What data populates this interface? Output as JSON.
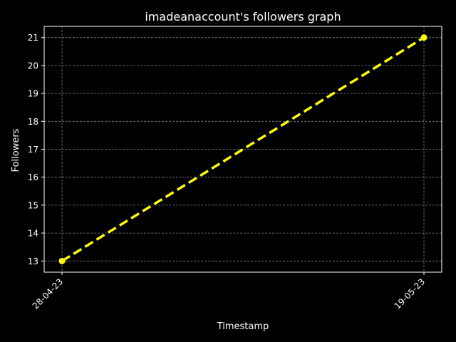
{
  "chart_data": {
    "type": "line",
    "title": "imadeanaccount's followers graph",
    "xlabel": "Timestamp",
    "ylabel": "Followers",
    "x": [
      "28-04-23",
      "19-05-23"
    ],
    "series": [
      {
        "values": [
          13,
          21
        ],
        "color": "#ffff00",
        "line_style": "dashed",
        "marker": "circle"
      }
    ],
    "ylim": [
      12.6,
      21.4
    ],
    "y_ticks": [
      13,
      14,
      15,
      16,
      17,
      18,
      19,
      20,
      21
    ],
    "grid": true,
    "grid_color": "#808080",
    "background": "#000000",
    "axis_color": "#ffffff",
    "text_color": "#ffffff",
    "x_tick_rotation": 45
  }
}
